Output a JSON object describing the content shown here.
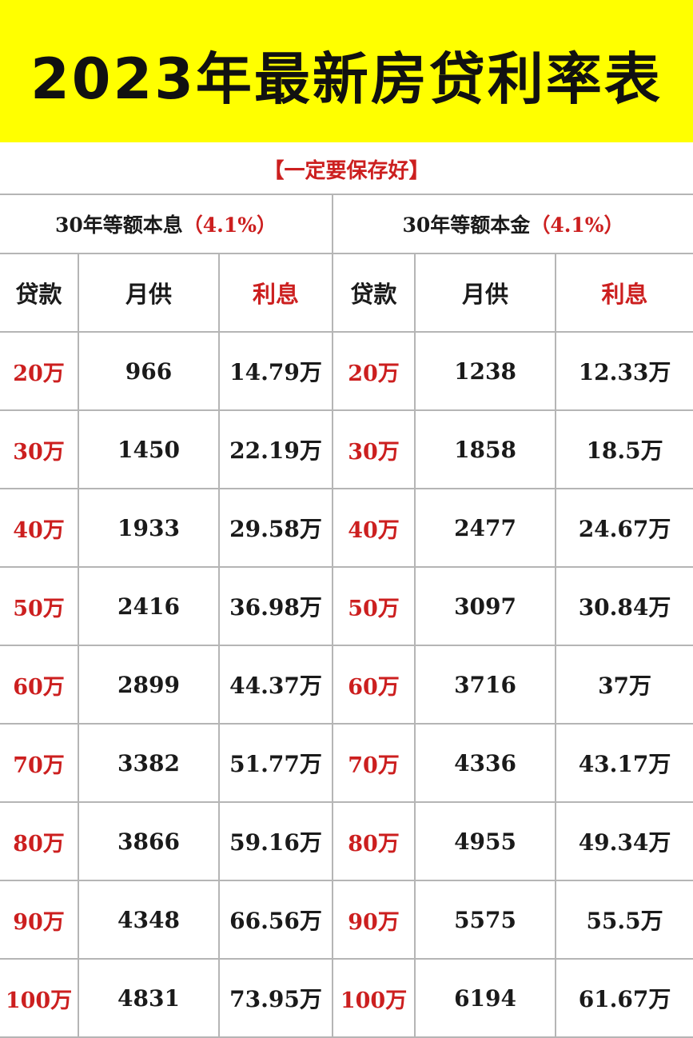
{
  "title": "2023年最新房贷利率表",
  "subtitle": "【一定要保存好】",
  "groups": [
    {
      "name": "30年等额本息",
      "rate": "（4.1%）"
    },
    {
      "name": "30年等额本金",
      "rate": "（4.1%）"
    }
  ],
  "columns": [
    "贷款",
    "月供",
    "利息"
  ],
  "rows": [
    {
      "amount": "20万",
      "equal_payment": {
        "monthly": "966",
        "interest": "14.79万"
      },
      "equal_principal": {
        "monthly": "1238",
        "interest": "12.33万"
      }
    },
    {
      "amount": "30万",
      "equal_payment": {
        "monthly": "1450",
        "interest": "22.19万"
      },
      "equal_principal": {
        "monthly": "1858",
        "interest": "18.5万"
      }
    },
    {
      "amount": "40万",
      "equal_payment": {
        "monthly": "1933",
        "interest": "29.58万"
      },
      "equal_principal": {
        "monthly": "2477",
        "interest": "24.67万"
      }
    },
    {
      "amount": "50万",
      "equal_payment": {
        "monthly": "2416",
        "interest": "36.98万"
      },
      "equal_principal": {
        "monthly": "3097",
        "interest": "30.84万"
      }
    },
    {
      "amount": "60万",
      "equal_payment": {
        "monthly": "2899",
        "interest": "44.37万"
      },
      "equal_principal": {
        "monthly": "3716",
        "interest": "37万"
      }
    },
    {
      "amount": "70万",
      "equal_payment": {
        "monthly": "3382",
        "interest": "51.77万"
      },
      "equal_principal": {
        "monthly": "4336",
        "interest": "43.17万"
      }
    },
    {
      "amount": "80万",
      "equal_payment": {
        "monthly": "3866",
        "interest": "59.16万"
      },
      "equal_principal": {
        "monthly": "4955",
        "interest": "49.34万"
      }
    },
    {
      "amount": "90万",
      "equal_payment": {
        "monthly": "4348",
        "interest": "66.56万"
      },
      "equal_principal": {
        "monthly": "5575",
        "interest": "55.5万"
      }
    },
    {
      "amount": "100万",
      "equal_payment": {
        "monthly": "4831",
        "interest": "73.95万"
      },
      "equal_principal": {
        "monthly": "6194",
        "interest": "61.67万"
      }
    }
  ],
  "colors": {
    "banner": "#ffff00",
    "accent_red": "#cc1f1f",
    "grid": "#b5b5b5"
  }
}
